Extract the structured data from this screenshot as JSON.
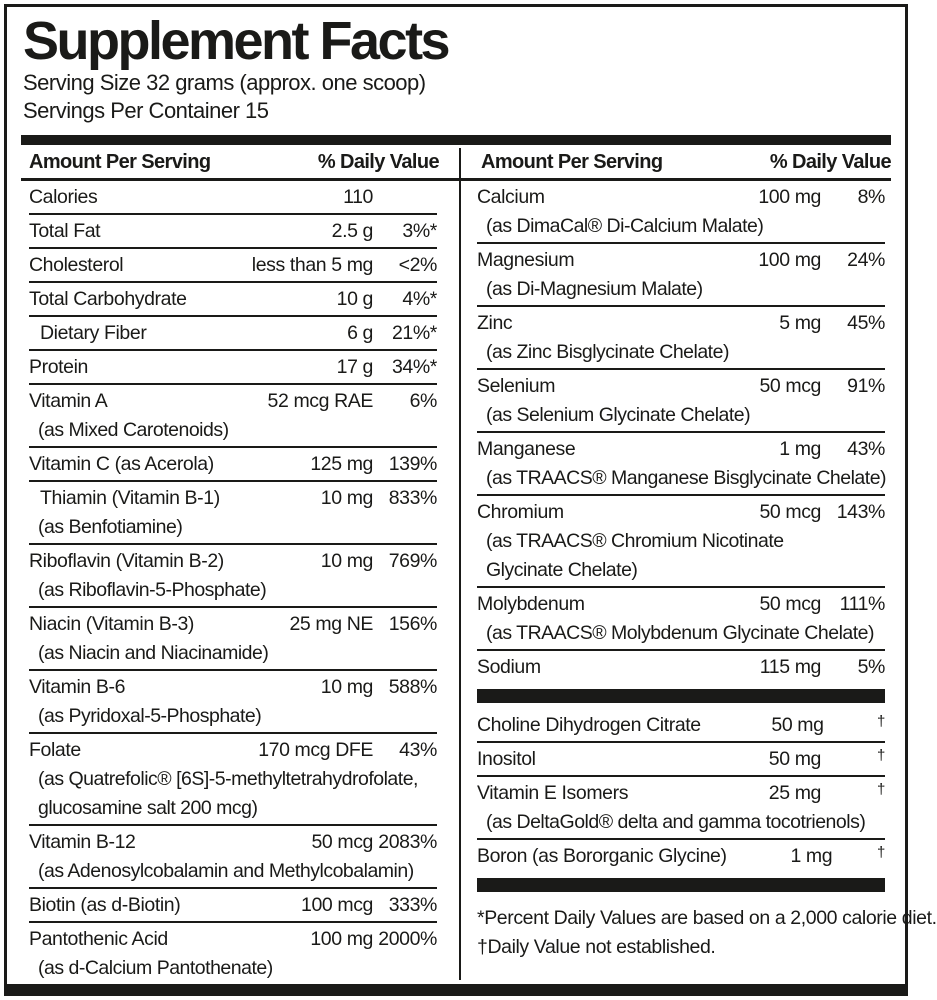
{
  "header": {
    "title": "Supplement Facts",
    "serving_size": "Serving Size 32 grams (approx. one scoop)",
    "servings_per_container": "Servings Per Container 15"
  },
  "column_headers": {
    "amount": "Amount Per Serving",
    "daily_value": "% Daily Value"
  },
  "colors": {
    "ink": "#1a1a18",
    "background": "#ffffff"
  },
  "left_column": {
    "rows": [
      {
        "name": "Calories",
        "amount": "110",
        "dv": ""
      },
      {
        "name": "Total Fat",
        "amount": "2.5 g",
        "dv": "3%*"
      },
      {
        "name": "Cholesterol",
        "amount": "less than 5 mg",
        "dv": "<2%"
      },
      {
        "name": "Total Carbohydrate",
        "amount": "10 g",
        "dv": "4%*"
      },
      {
        "name": "Dietary Fiber",
        "amount": "6 g",
        "dv": "21%*",
        "indent": true
      },
      {
        "name": "Protein",
        "amount": "17 g",
        "dv": "34%*"
      },
      {
        "name": "Vitamin A",
        "amount": "52 mcg RAE",
        "dv": "6%",
        "sub": [
          "(as Mixed Carotenoids)"
        ]
      },
      {
        "name": "Vitamin C (as Acerola)",
        "amount": "125 mg",
        "dv": "139%"
      },
      {
        "name": "Thiamin (Vitamin B-1)",
        "amount": "10 mg",
        "dv": "833%",
        "indent": true,
        "sub": [
          "(as Benfotiamine)"
        ]
      },
      {
        "name": "Riboflavin (Vitamin B-2)",
        "amount": "10 mg",
        "dv": "769%",
        "sub": [
          "(as Riboflavin-5-Phosphate)"
        ]
      },
      {
        "name": "Niacin (Vitamin B-3)",
        "amount": "25 mg NE",
        "dv": "156%",
        "sub": [
          "(as Niacin and Niacinamide)"
        ]
      },
      {
        "name": "Vitamin B-6",
        "amount": "10 mg",
        "dv": "588%",
        "sub": [
          "(as Pyridoxal-5-Phosphate)"
        ]
      },
      {
        "name": "Folate",
        "amount": "170 mcg DFE",
        "dv": "43%",
        "sub": [
          "(as Quatrefolic® [6S]-5-methyltetrahydrofolate,",
          "glucosamine salt 200 mcg)"
        ]
      },
      {
        "name": "Vitamin B-12",
        "amount": "50 mcg",
        "dv": "2083%",
        "sub": [
          "(as Adenosylcobalamin and Methylcobalamin)"
        ]
      },
      {
        "name": "Biotin (as d-Biotin)",
        "amount": "100 mcg",
        "dv": "333%"
      },
      {
        "name": "Pantothenic Acid",
        "amount": "100 mg",
        "dv": "2000%",
        "sub": [
          "(as d-Calcium Pantothenate)"
        ]
      }
    ]
  },
  "right_column": {
    "rows_main": [
      {
        "name": "Calcium",
        "amount": "100 mg",
        "dv": "8%",
        "sub": [
          "(as DimaCal® Di-Calcium Malate)"
        ]
      },
      {
        "name": "Magnesium",
        "amount": "100 mg",
        "dv": "24%",
        "sub": [
          "(as Di-Magnesium Malate)"
        ]
      },
      {
        "name": "Zinc",
        "amount": "5 mg",
        "dv": "45%",
        "sub": [
          "(as Zinc Bisglycinate Chelate)"
        ]
      },
      {
        "name": "Selenium",
        "amount": "50 mcg",
        "dv": "91%",
        "sub": [
          "(as Selenium Glycinate Chelate)"
        ]
      },
      {
        "name": "Manganese",
        "amount": "1 mg",
        "dv": "43%",
        "sub": [
          "(as TRAACS® Manganese Bisglycinate Chelate)"
        ]
      },
      {
        "name": "Chromium",
        "amount": "50 mcg",
        "dv": "143%",
        "sub": [
          "(as TRAACS® Chromium Nicotinate",
          "Glycinate Chelate)"
        ]
      },
      {
        "name": "Molybdenum",
        "amount": "50 mcg",
        "dv": "111%",
        "sub": [
          "(as TRAACS® Molybdenum Glycinate Chelate)"
        ]
      },
      {
        "name": "Sodium",
        "amount": "115 mg",
        "dv": "5%"
      }
    ],
    "rows_other": [
      {
        "name": "Choline Dihydrogen Citrate",
        "amount": "50 mg",
        "dv": "†"
      },
      {
        "name": "Inositol",
        "amount": "50 mg",
        "dv": "†"
      },
      {
        "name": "Vitamin E Isomers",
        "amount": "25 mg",
        "dv": "†",
        "sub": [
          "(as DeltaGold® delta and gamma tocotrienols)"
        ]
      },
      {
        "name": "Boron (as Bororganic Glycine)",
        "amount": "1 mg",
        "dv": "†"
      }
    ],
    "footnotes": [
      "*Percent Daily Values are based on a 2,000 calorie diet.",
      "†Daily Value not established."
    ]
  }
}
